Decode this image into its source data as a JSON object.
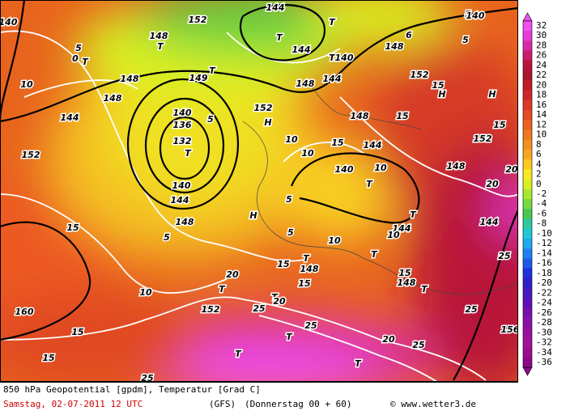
{
  "map": {
    "labels": [
      "144",
      "T",
      "T",
      "152",
      "148",
      "T",
      "144",
      "T",
      "140",
      "148",
      "6",
      "5",
      "140",
      "5",
      "140",
      "5",
      "T",
      "0",
      "144",
      "152",
      "148",
      "10",
      "148",
      "144",
      "149",
      "T",
      "140",
      "136",
      "132",
      "T",
      "5",
      "152",
      "H",
      "148",
      "15",
      "H",
      "H",
      "15",
      "15",
      "148",
      "152",
      "144",
      "10",
      "10",
      "15",
      "152",
      "140",
      "144",
      "140",
      "10",
      "T",
      "T",
      "144",
      "5",
      "H",
      "5",
      "148",
      "20",
      "20",
      "144",
      "15",
      "148",
      "5",
      "10",
      "10",
      "15",
      "T",
      "148",
      "T",
      "15",
      "148",
      "15",
      "20",
      "T",
      "T",
      "T",
      "25",
      "10",
      "160",
      "152",
      "20",
      "25",
      "25",
      "15",
      "25",
      "T",
      "20",
      "T",
      "T",
      "25",
      "156",
      "15",
      "25"
    ]
  },
  "colorbar": {
    "labels": [
      32,
      30,
      28,
      26,
      24,
      22,
      20,
      18,
      16,
      14,
      12,
      10,
      8,
      6,
      4,
      2,
      0,
      -2,
      -4,
      -6,
      -8,
      -10,
      -12,
      -14,
      -16,
      -18,
      -20,
      -22,
      -24,
      -26,
      -28,
      -30,
      -32,
      -34,
      -36
    ],
    "colors": [
      "#f050f0",
      "#e83cd8",
      "#d82aa8",
      "#c81e6c",
      "#b8143c",
      "#a81828",
      "#c01c28",
      "#d0282a",
      "#dc3a28",
      "#e44c24",
      "#ec6020",
      "#f07820",
      "#f49020",
      "#f8a820",
      "#fcc820",
      "#f8e820",
      "#d8f020",
      "#a8e830",
      "#78d840",
      "#48c850",
      "#30c8a0",
      "#20c8d8",
      "#20a8f0",
      "#2080f0",
      "#2058e8",
      "#2030e0",
      "#3020c8",
      "#4818c0",
      "#6010b8",
      "#7810b0",
      "#8c10a8",
      "#9810a0",
      "#a01098",
      "#9c0c90",
      "#8c0888"
    ]
  },
  "footer": {
    "title": "850 hPa Geopotential [gpdm], Temperatur [Grad C]",
    "date": "Samstag, 02-07-2011  12 UTC",
    "model": "(GFS)",
    "run": "(Donnerstag 00 + 60)",
    "credit": "© www.wetter3.de"
  }
}
